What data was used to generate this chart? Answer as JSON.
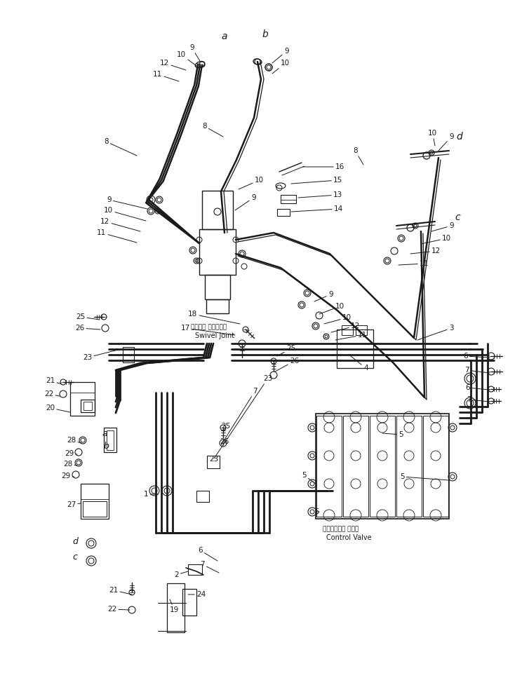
{
  "bg_color": "#ffffff",
  "line_color": "#1a1a1a",
  "fig_width": 7.54,
  "fig_height": 9.6,
  "swivel_joint_jp": "スイベル ジョイント",
  "swivel_joint_en": "Swivel Joint",
  "control_valve_jp": "コントロール バルブ",
  "control_valve_en": "Control Valve",
  "dpi": 100
}
